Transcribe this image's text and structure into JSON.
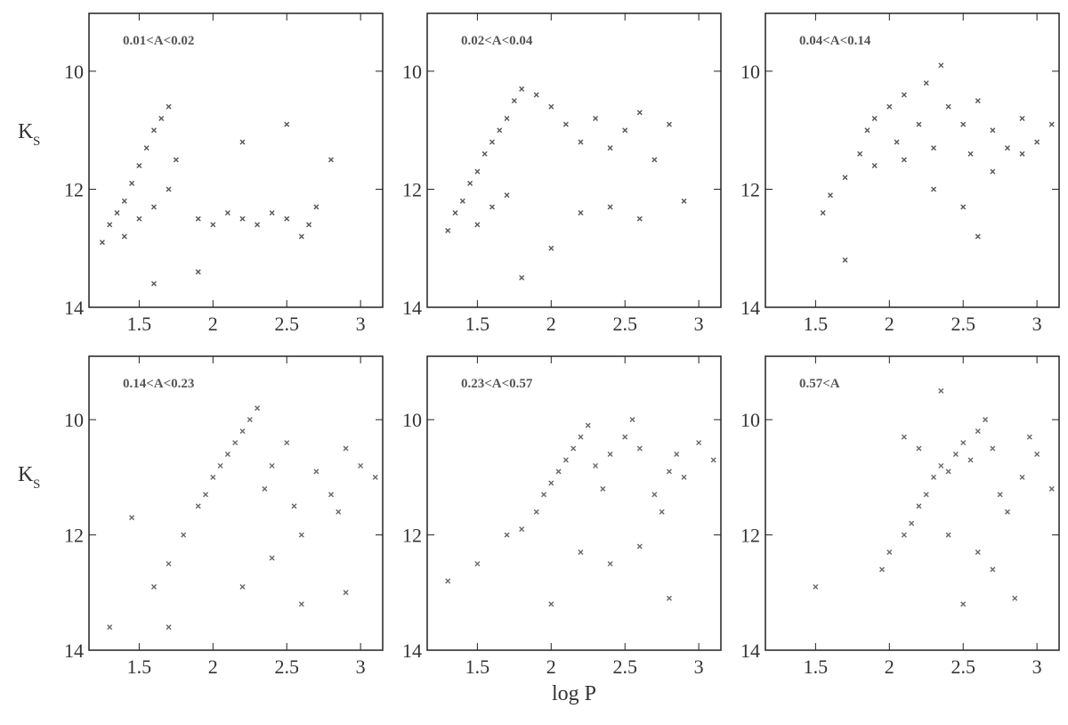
{
  "chart_data": [
    {
      "type": "scatter",
      "annotation": "0.01<A<0.02",
      "y_label": "K",
      "y_label_sub": "S",
      "color": "#555555",
      "xlim": [
        1.16,
        3.15
      ],
      "ylim": [
        14,
        9.02
      ],
      "xticks": [
        1.5,
        2,
        2.5,
        3
      ],
      "yticks": [
        10,
        12,
        14
      ],
      "x": [
        1.25,
        1.3,
        1.35,
        1.4,
        1.45,
        1.5,
        1.55,
        1.6,
        1.65,
        1.7,
        1.4,
        1.5,
        1.6,
        1.7,
        1.75,
        1.9,
        2.0,
        2.1,
        2.2,
        2.3,
        2.4,
        2.5,
        2.6,
        2.65,
        2.7,
        2.2,
        2.5,
        1.9,
        2.8,
        1.6
      ],
      "y": [
        12.9,
        12.6,
        12.4,
        12.2,
        11.9,
        11.6,
        11.3,
        11.0,
        10.8,
        10.6,
        12.8,
        12.5,
        12.3,
        12.0,
        11.5,
        12.5,
        12.6,
        12.4,
        12.5,
        12.6,
        12.4,
        12.5,
        12.8,
        12.6,
        12.3,
        11.2,
        10.9,
        13.4,
        11.5,
        13.6
      ]
    },
    {
      "type": "scatter",
      "annotation": "0.02<A<0.04",
      "color": "#555555",
      "xlim": [
        1.16,
        3.15
      ],
      "ylim": [
        14,
        9.02
      ],
      "xticks": [
        1.5,
        2,
        2.5,
        3
      ],
      "yticks": [
        10,
        12,
        14
      ],
      "x": [
        1.3,
        1.35,
        1.4,
        1.45,
        1.5,
        1.55,
        1.6,
        1.65,
        1.7,
        1.75,
        1.8,
        1.5,
        1.6,
        1.7,
        1.9,
        2.0,
        2.1,
        2.2,
        2.3,
        2.4,
        2.5,
        2.6,
        2.7,
        2.8,
        2.2,
        2.4,
        2.6,
        2.0,
        1.8,
        2.9
      ],
      "y": [
        12.7,
        12.4,
        12.2,
        11.9,
        11.7,
        11.4,
        11.2,
        11.0,
        10.8,
        10.5,
        10.3,
        12.6,
        12.3,
        12.1,
        10.4,
        10.6,
        10.9,
        11.2,
        10.8,
        11.3,
        11.0,
        10.7,
        11.5,
        10.9,
        12.4,
        12.3,
        12.5,
        13.0,
        13.5,
        12.2
      ]
    },
    {
      "type": "scatter",
      "annotation": "0.04<A<0.14",
      "color": "#555555",
      "xlim": [
        1.16,
        3.15
      ],
      "ylim": [
        14,
        9.02
      ],
      "xticks": [
        1.5,
        2,
        2.5,
        3
      ],
      "yticks": [
        10,
        12,
        14
      ],
      "x": [
        1.55,
        1.6,
        1.7,
        1.8,
        1.85,
        1.9,
        2.0,
        2.05,
        2.1,
        2.2,
        2.25,
        2.3,
        2.4,
        2.5,
        2.55,
        2.6,
        2.7,
        2.8,
        2.9,
        3.0,
        3.1,
        1.9,
        2.1,
        2.3,
        2.5,
        2.7,
        2.9,
        2.35,
        1.7,
        2.6
      ],
      "y": [
        12.4,
        12.1,
        11.8,
        11.4,
        11.0,
        10.8,
        10.6,
        11.2,
        10.4,
        10.9,
        10.2,
        11.3,
        10.6,
        10.9,
        11.4,
        10.5,
        11.0,
        11.3,
        10.8,
        11.2,
        10.9,
        11.6,
        11.5,
        12.0,
        12.3,
        11.7,
        11.4,
        9.9,
        13.2,
        12.8
      ]
    },
    {
      "type": "scatter",
      "annotation": "0.14<A<0.23",
      "y_label": "K",
      "y_label_sub": "S",
      "color": "#666666",
      "xlim": [
        1.16,
        3.15
      ],
      "ylim": [
        14,
        8.9
      ],
      "xticks": [
        1.5,
        2,
        2.5,
        3
      ],
      "yticks": [
        10,
        12,
        14
      ],
      "x": [
        1.3,
        1.45,
        1.6,
        1.7,
        1.8,
        1.9,
        1.95,
        2.0,
        2.05,
        2.1,
        2.15,
        2.2,
        2.25,
        2.3,
        2.35,
        2.4,
        2.5,
        2.55,
        2.6,
        2.7,
        2.8,
        2.85,
        2.9,
        3.0,
        3.1,
        2.4,
        2.6,
        1.7,
        2.2,
        2.9
      ],
      "y": [
        13.6,
        11.7,
        12.9,
        12.5,
        12.0,
        11.5,
        11.3,
        11.0,
        10.8,
        10.6,
        10.4,
        10.2,
        10.0,
        9.8,
        11.2,
        10.8,
        10.4,
        11.5,
        12.0,
        10.9,
        11.3,
        11.6,
        10.5,
        10.8,
        11.0,
        12.4,
        13.2,
        13.6,
        12.9,
        13.0
      ]
    },
    {
      "type": "scatter",
      "annotation": "0.23<A<0.57",
      "x_label": "log P",
      "color": "#666666",
      "xlim": [
        1.16,
        3.15
      ],
      "ylim": [
        14,
        8.9
      ],
      "xticks": [
        1.5,
        2,
        2.5,
        3
      ],
      "yticks": [
        10,
        12,
        14
      ],
      "x": [
        1.3,
        1.5,
        1.7,
        1.8,
        1.9,
        1.95,
        2.0,
        2.05,
        2.1,
        2.15,
        2.2,
        2.25,
        2.3,
        2.35,
        2.4,
        2.5,
        2.55,
        2.6,
        2.7,
        2.75,
        2.8,
        2.85,
        2.9,
        3.0,
        3.1,
        2.2,
        2.4,
        2.6,
        2.0,
        2.8
      ],
      "y": [
        12.8,
        12.5,
        12.0,
        11.9,
        11.6,
        11.3,
        11.1,
        10.9,
        10.7,
        10.5,
        10.3,
        10.1,
        10.8,
        11.2,
        10.6,
        10.3,
        10.0,
        10.5,
        11.3,
        11.6,
        10.9,
        10.6,
        11.0,
        10.4,
        10.7,
        12.3,
        12.5,
        12.2,
        13.2,
        13.1
      ]
    },
    {
      "type": "scatter",
      "annotation": "0.57<A",
      "color": "#666666",
      "xlim": [
        1.16,
        3.15
      ],
      "ylim": [
        14,
        8.9
      ],
      "xticks": [
        1.5,
        2,
        2.5,
        3
      ],
      "yticks": [
        10,
        12,
        14
      ],
      "x": [
        1.5,
        1.95,
        2.0,
        2.1,
        2.15,
        2.2,
        2.25,
        2.3,
        2.35,
        2.4,
        2.45,
        2.5,
        2.55,
        2.6,
        2.65,
        2.7,
        2.75,
        2.8,
        2.9,
        3.0,
        3.1,
        2.2,
        2.4,
        2.6,
        2.1,
        2.7,
        2.85,
        2.35,
        2.5,
        2.95
      ],
      "y": [
        12.9,
        12.6,
        12.3,
        12.0,
        11.8,
        11.5,
        11.3,
        11.0,
        10.8,
        10.9,
        10.6,
        10.4,
        10.7,
        10.2,
        10.0,
        10.5,
        11.3,
        11.6,
        11.0,
        10.6,
        11.2,
        10.5,
        12.0,
        12.3,
        10.3,
        12.6,
        13.1,
        9.5,
        13.2,
        10.3
      ]
    }
  ]
}
